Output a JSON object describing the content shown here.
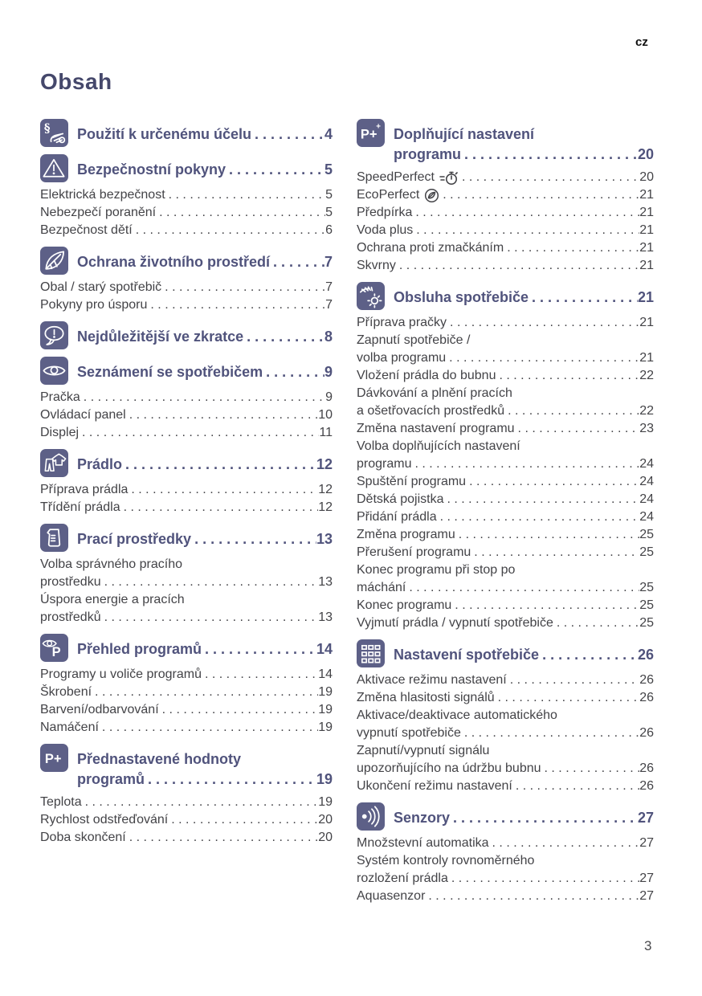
{
  "page": {
    "lang_tag": "cz",
    "title": "Obsah",
    "page_number": "3"
  },
  "colors": {
    "accent": "#5d6087",
    "heading_text": "#50537c",
    "body_text": "#434347"
  },
  "toc": {
    "left": [
      {
        "icon": "paragraph-hand-icon",
        "heading": [
          {
            "text": "Použití k určenému účelu",
            "page": "4"
          }
        ],
        "entries": []
      },
      {
        "icon": "warning-triangle-icon",
        "heading": [
          {
            "text": "Bezpečnostní pokyny",
            "page": "5"
          }
        ],
        "entries": [
          {
            "lines": [
              "Elektrická bezpečnost"
            ],
            "page": "5"
          },
          {
            "lines": [
              "Nebezpečí poranění"
            ],
            "page": "5"
          },
          {
            "lines": [
              "Bezpečnost dětí"
            ],
            "page": "6"
          }
        ]
      },
      {
        "icon": "leaf-icon",
        "heading": [
          {
            "text": "Ochrana životního prostředí",
            "page": "7"
          }
        ],
        "entries": [
          {
            "lines": [
              "Obal / starý spotřebič"
            ],
            "page": "7"
          },
          {
            "lines": [
              "Pokyny pro úsporu"
            ],
            "page": "7"
          }
        ]
      },
      {
        "icon": "speech-bubble-exclamation-icon",
        "heading": [
          {
            "text": "Nejdůležitější ve zkratce",
            "page": "8"
          }
        ],
        "entries": []
      },
      {
        "icon": "eye-icon",
        "heading": [
          {
            "text": "Seznámení se spotřebičem",
            "page": "9"
          }
        ],
        "entries": [
          {
            "lines": [
              "Pračka"
            ],
            "page": "9"
          },
          {
            "lines": [
              "Ovládací panel"
            ],
            "page": "10"
          },
          {
            "lines": [
              "Displej"
            ],
            "page": "11"
          }
        ]
      },
      {
        "icon": "laundry-clothes-icon",
        "heading": [
          {
            "text": "Prádlo",
            "page": "12"
          }
        ],
        "entries": [
          {
            "lines": [
              "Příprava prádla"
            ],
            "page": "12"
          },
          {
            "lines": [
              "Třídění prádla"
            ],
            "page": "12"
          }
        ]
      },
      {
        "icon": "measuring-cup-icon",
        "heading": [
          {
            "text": "Prací prostředky",
            "page": "13"
          }
        ],
        "entries": [
          {
            "lines": [
              "Volba správného pracího",
              "prostředku"
            ],
            "page": "13"
          },
          {
            "lines": [
              "Úspora energie a pracích",
              "prostředků"
            ],
            "page": "13"
          }
        ]
      },
      {
        "icon": "eye-p-icon",
        "heading": [
          {
            "text": "Přehled programů",
            "page": "14"
          }
        ],
        "entries": [
          {
            "lines": [
              "Programy u voliče programů"
            ],
            "page": "14"
          },
          {
            "lines": [
              "Škrobení"
            ],
            "page": "19"
          },
          {
            "lines": [
              "Barvení/odbarvování"
            ],
            "page": "19"
          },
          {
            "lines": [
              "Namáčení"
            ],
            "page": "19"
          }
        ]
      },
      {
        "icon": "p-plus-icon",
        "heading": [
          {
            "text": "Přednastavené hodnoty"
          },
          {
            "text": "programů",
            "page": "19"
          }
        ],
        "entries": [
          {
            "lines": [
              "Teplota"
            ],
            "page": "19"
          },
          {
            "lines": [
              "Rychlost odstřeďování"
            ],
            "page": "20"
          },
          {
            "lines": [
              "Doba skončení"
            ],
            "page": "20"
          }
        ]
      }
    ],
    "right": [
      {
        "icon": "p-plus-plus-icon",
        "heading": [
          {
            "text": "Doplňující nastavení"
          },
          {
            "text": "programu",
            "page": "20"
          }
        ],
        "entries": [
          {
            "lines": [
              "SpeedPerfect"
            ],
            "suffix_icon": "speed-perfect-icon",
            "page": "20"
          },
          {
            "lines": [
              "EcoPerfect"
            ],
            "suffix_icon": "eco-perfect-icon",
            "page": "21"
          },
          {
            "lines": [
              "Předpírka"
            ],
            "page": "21"
          },
          {
            "lines": [
              "Voda plus"
            ],
            "page": "21"
          },
          {
            "lines": [
              "Ochrana proti zmačkáním"
            ],
            "page": "21"
          },
          {
            "lines": [
              "Skvrny"
            ],
            "page": "21"
          }
        ]
      },
      {
        "icon": "hand-dial-icon",
        "heading": [
          {
            "text": "Obsluha spotřebiče",
            "page": "21"
          }
        ],
        "entries": [
          {
            "lines": [
              "Příprava pračky"
            ],
            "page": "21"
          },
          {
            "lines": [
              "Zapnutí spotřebiče /",
              "volba programu"
            ],
            "page": "21"
          },
          {
            "lines": [
              "Vložení prádla do bubnu"
            ],
            "page": "22"
          },
          {
            "lines": [
              "Dávkování a plnění pracích",
              "a ošetřovacích prostředků"
            ],
            "page": "22"
          },
          {
            "lines": [
              "Změna nastavení programu"
            ],
            "page": "23"
          },
          {
            "lines": [
              "Volba doplňujících nastavení",
              "programu"
            ],
            "page": "24"
          },
          {
            "lines": [
              "Spuštění programu"
            ],
            "page": "24"
          },
          {
            "lines": [
              "Dětská pojistka"
            ],
            "page": "24"
          },
          {
            "lines": [
              "Přidání prádla"
            ],
            "page": "24"
          },
          {
            "lines": [
              "Změna programu"
            ],
            "page": "25"
          },
          {
            "lines": [
              "Přerušení programu"
            ],
            "page": "25"
          },
          {
            "lines": [
              "Konec programu při stop po",
              "máchání"
            ],
            "page": "25"
          },
          {
            "lines": [
              "Konec programu"
            ],
            "page": "25"
          },
          {
            "lines": [
              "Vyjmutí prádla / vypnutí spotřebiče"
            ],
            "page": "25"
          }
        ]
      },
      {
        "icon": "grid-icon",
        "heading": [
          {
            "text": "Nastavení spotřebiče",
            "page": "26"
          }
        ],
        "entries": [
          {
            "lines": [
              "Aktivace režimu nastavení"
            ],
            "page": "26"
          },
          {
            "lines": [
              "Změna hlasitosti signálů"
            ],
            "page": "26"
          },
          {
            "lines": [
              "Aktivace/deaktivace automatického",
              "vypnutí spotřebiče"
            ],
            "page": "26"
          },
          {
            "lines": [
              "Zapnutí/vypnutí signálu",
              "upozorňujícího na údržbu bubnu"
            ],
            "page": "26"
          },
          {
            "lines": [
              "Ukončení režimu nastavení"
            ],
            "page": "26"
          }
        ]
      },
      {
        "icon": "sensor-icon",
        "heading": [
          {
            "text": "Senzory",
            "page": "27"
          }
        ],
        "entries": [
          {
            "lines": [
              "Množstevní automatika"
            ],
            "page": "27"
          },
          {
            "lines": [
              "Systém kontroly rovnoměrného",
              "rozložení prádla"
            ],
            "page": "27"
          },
          {
            "lines": [
              "Aquasenzor"
            ],
            "page": "27"
          }
        ]
      }
    ]
  }
}
